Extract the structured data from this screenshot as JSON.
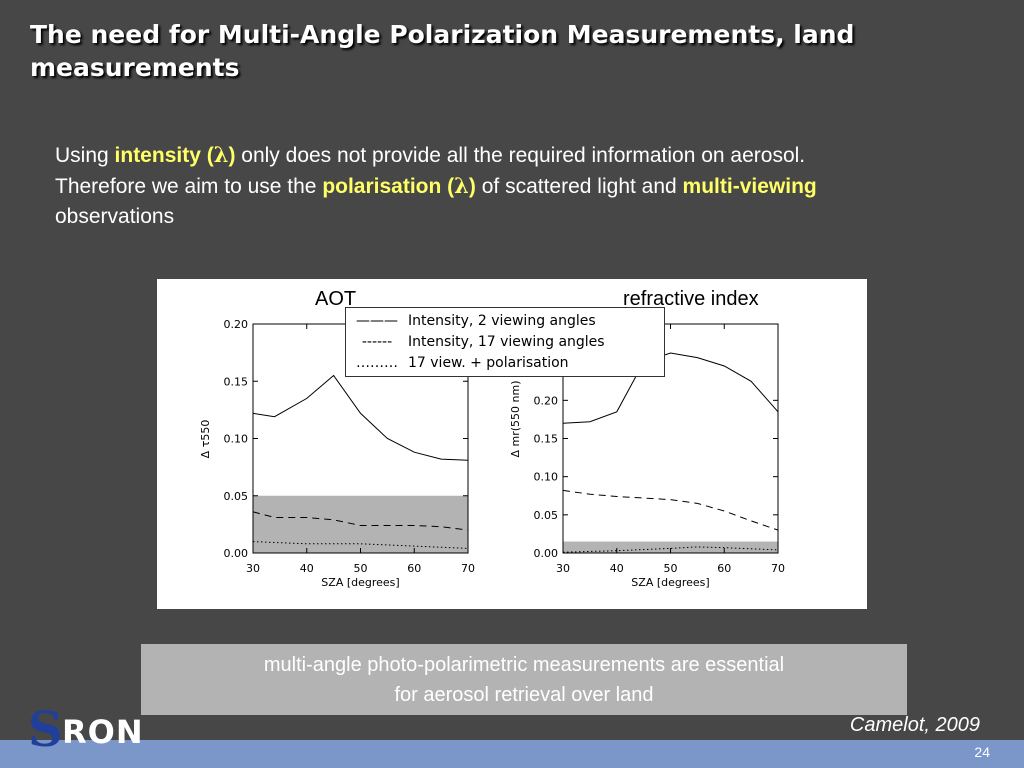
{
  "slide": {
    "title": "The need for Multi-Angle Polarization Measurements, land measurements",
    "intro": {
      "p1": "Using ",
      "hl1": "intensity (",
      "lam": "λ",
      "hl1b": ")",
      "p2": " only does not provide all the required information on aerosol. Therefore we aim to use the ",
      "hl2": "polarisation (",
      "hl2b": ")",
      "p3": " of scattered light  and ",
      "hl3": "multi-viewing",
      "p4": " observations"
    },
    "conclusion_line1": "multi-angle photo-polarimetric measurements are essential",
    "conclusion_line2": "for aerosol retrieval over land",
    "citation": "Camelot, 2009",
    "page_number": "24",
    "logo_s": "S",
    "logo_ron": "RON"
  },
  "legend": {
    "rows": [
      {
        "marker": "———",
        "label": "Intensity, 2 viewing angles"
      },
      {
        "marker": "------",
        "label": "Intensity, 17 viewing angles"
      },
      {
        "marker": "………",
        "label": "17 view.   + polarisation"
      }
    ]
  },
  "colors": {
    "background": "#474747",
    "highlight": "#ffff66",
    "bottom_bar": "#7b96c8",
    "shaded_band": "#b3b3b3",
    "logo_blue": "#1f3f9a"
  },
  "chart_data": [
    {
      "type": "line",
      "title": "AOT",
      "xlabel": "SZA [degrees]",
      "ylabel": "Δ τ550",
      "xlim": [
        30,
        70
      ],
      "ylim": [
        0,
        0.2
      ],
      "xticks": [
        "30",
        "40",
        "50",
        "60",
        "70"
      ],
      "yticks": [
        "0.00",
        "0.05",
        "0.10",
        "0.15",
        "0.20"
      ],
      "shaded_band": [
        0,
        0.05
      ],
      "series": [
        {
          "name": "Intensity, 2 viewing angles",
          "style": "solid",
          "x": [
            30,
            34,
            40,
            45,
            50,
            55,
            60,
            65,
            70
          ],
          "y": [
            0.122,
            0.119,
            0.135,
            0.155,
            0.122,
            0.1,
            0.088,
            0.082,
            0.081
          ]
        },
        {
          "name": "Intensity, 17 viewing angles",
          "style": "dashed",
          "x": [
            30,
            34,
            40,
            45,
            50,
            55,
            60,
            65,
            70
          ],
          "y": [
            0.036,
            0.031,
            0.031,
            0.029,
            0.024,
            0.024,
            0.024,
            0.023,
            0.02
          ]
        },
        {
          "name": "17 view.   + polarisation",
          "style": "dotted",
          "x": [
            30,
            40,
            50,
            60,
            70
          ],
          "y": [
            0.01,
            0.008,
            0.008,
            0.006,
            0.004
          ]
        }
      ]
    },
    {
      "type": "line",
      "title": "refractive index",
      "xlabel": "SZA [degrees]",
      "ylabel": "Δ mr(550 nm)",
      "xlim": [
        30,
        70
      ],
      "ylim": [
        0,
        0.3
      ],
      "xticks": [
        "30",
        "40",
        "50",
        "60",
        "70"
      ],
      "yticks": [
        "0.00",
        "0.05",
        "0.10",
        "0.15",
        "0.20"
      ],
      "shaded_band": [
        0,
        0.015
      ],
      "series": [
        {
          "name": "Intensity, 2 viewing angles",
          "style": "solid",
          "x": [
            30,
            35,
            40,
            45,
            50,
            55,
            60,
            65,
            70
          ],
          "y": [
            0.17,
            0.172,
            0.185,
            0.25,
            0.262,
            0.256,
            0.245,
            0.225,
            0.185
          ]
        },
        {
          "name": "Intensity, 17 viewing angles",
          "style": "dashed",
          "x": [
            30,
            35,
            40,
            50,
            55,
            60,
            65,
            70
          ],
          "y": [
            0.082,
            0.077,
            0.074,
            0.07,
            0.065,
            0.055,
            0.042,
            0.03
          ]
        },
        {
          "name": "17 view.   + polarisation",
          "style": "dotted",
          "x": [
            30,
            40,
            50,
            55,
            60,
            70
          ],
          "y": [
            0.001,
            0.003,
            0.006,
            0.008,
            0.007,
            0.004
          ]
        }
      ]
    }
  ]
}
